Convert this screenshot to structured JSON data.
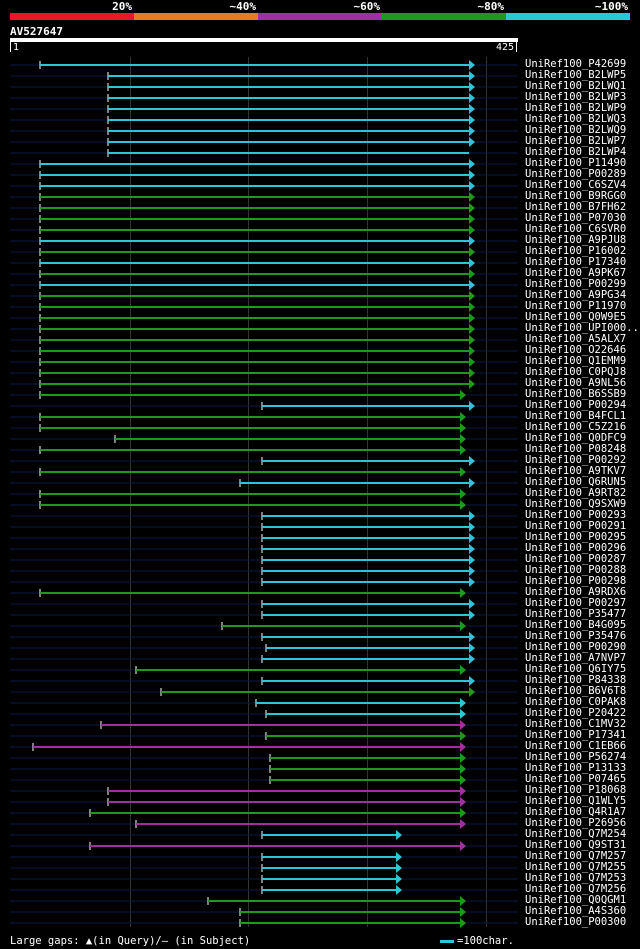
{
  "legend": {
    "segments": [
      {
        "label": "20%",
        "color": "#e8182a"
      },
      {
        "label": "~40%",
        "color": "#ea7a1e"
      },
      {
        "label": "~60%",
        "color": "#a030a0"
      },
      {
        "label": "~80%",
        "color": "#1d9a1d"
      },
      {
        "label": "~100%",
        "color": "#2cc7d6"
      }
    ]
  },
  "query": {
    "id": "AV527647",
    "start": "1",
    "end": "425"
  },
  "footer": {
    "gaps_text": "Large gaps: ▲(in Query)/– (in Subject)",
    "scale_text": "=100char."
  },
  "hits": [
    {
      "name": "UniRef100_P42699",
      "color": "cyan",
      "start": 40,
      "end": 469,
      "arrow": true
    },
    {
      "name": "UniRef100_B2LWP5",
      "color": "cyan",
      "start": 108,
      "end": 469,
      "arrow": true
    },
    {
      "name": "UniRef100_B2LWQ1",
      "color": "cyan",
      "start": 108,
      "end": 469,
      "arrow": true
    },
    {
      "name": "UniRef100_B2LWP3",
      "color": "cyan",
      "start": 108,
      "end": 469,
      "arrow": true
    },
    {
      "name": "UniRef100_B2LWP9",
      "color": "cyan",
      "start": 108,
      "end": 469,
      "arrow": true
    },
    {
      "name": "UniRef100_B2LWQ3",
      "color": "cyan",
      "start": 108,
      "end": 469,
      "arrow": true
    },
    {
      "name": "UniRef100_B2LWQ9",
      "color": "cyan",
      "start": 108,
      "end": 469,
      "arrow": true
    },
    {
      "name": "UniRef100_B2LWP7",
      "color": "cyan",
      "start": 108,
      "end": 469,
      "arrow": true
    },
    {
      "name": "UniRef100_B2LWP4",
      "color": "cyan",
      "start": 108,
      "end": 469,
      "arrow": false
    },
    {
      "name": "UniRef100_P11490",
      "color": "cyan",
      "start": 40,
      "end": 469,
      "arrow": true
    },
    {
      "name": "UniRef100_P00289",
      "color": "cyan",
      "start": 40,
      "end": 469,
      "arrow": true
    },
    {
      "name": "UniRef100_C6SZV4",
      "color": "cyan",
      "start": 40,
      "end": 469,
      "arrow": true
    },
    {
      "name": "UniRef100_B9RGG0",
      "color": "green",
      "start": 40,
      "end": 469,
      "arrow": true
    },
    {
      "name": "UniRef100_B7FH62",
      "color": "green",
      "start": 40,
      "end": 469,
      "arrow": true
    },
    {
      "name": "UniRef100_P07030",
      "color": "green",
      "start": 40,
      "end": 469,
      "arrow": true
    },
    {
      "name": "UniRef100_C6SVR0",
      "color": "green",
      "start": 40,
      "end": 469,
      "arrow": true
    },
    {
      "name": "UniRef100_A9PJU8",
      "color": "cyan",
      "start": 40,
      "end": 469,
      "arrow": true
    },
    {
      "name": "UniRef100_P16002",
      "color": "green",
      "start": 40,
      "end": 469,
      "arrow": true
    },
    {
      "name": "UniRef100_P17340",
      "color": "cyan",
      "start": 40,
      "end": 469,
      "arrow": true
    },
    {
      "name": "UniRef100_A9PK67",
      "color": "green",
      "start": 40,
      "end": 469,
      "arrow": true
    },
    {
      "name": "UniRef100_P00299",
      "color": "cyan",
      "start": 40,
      "end": 469,
      "arrow": true
    },
    {
      "name": "UniRef100_A9PG34",
      "color": "green",
      "start": 40,
      "end": 469,
      "arrow": true
    },
    {
      "name": "UniRef100_P11970",
      "color": "green",
      "start": 40,
      "end": 469,
      "arrow": true
    },
    {
      "name": "UniRef100_Q0W9E5",
      "color": "green",
      "start": 40,
      "end": 469,
      "arrow": true
    },
    {
      "name": "UniRef100_UPI000..",
      "color": "green",
      "start": 40,
      "end": 469,
      "arrow": true
    },
    {
      "name": "UniRef100_A5ALX7",
      "color": "green",
      "start": 40,
      "end": 469,
      "arrow": true
    },
    {
      "name": "UniRef100_O22646",
      "color": "green",
      "start": 40,
      "end": 469,
      "arrow": true
    },
    {
      "name": "UniRef100_Q1EMM9",
      "color": "green",
      "start": 40,
      "end": 469,
      "arrow": true
    },
    {
      "name": "UniRef100_C0PQJ8",
      "color": "green",
      "start": 40,
      "end": 469,
      "arrow": true
    },
    {
      "name": "UniRef100_A9NL56",
      "color": "green",
      "start": 40,
      "end": 469,
      "arrow": true
    },
    {
      "name": "UniRef100_B6SSB9",
      "color": "green",
      "start": 40,
      "end": 460,
      "arrow": true
    },
    {
      "name": "UniRef100_P00294",
      "color": "cyan",
      "start": 262,
      "end": 469,
      "arrow": true
    },
    {
      "name": "UniRef100_B4FCL1",
      "color": "green",
      "start": 40,
      "end": 460,
      "arrow": true
    },
    {
      "name": "UniRef100_C5Z216",
      "color": "green",
      "start": 40,
      "end": 460,
      "arrow": true
    },
    {
      "name": "UniRef100_Q0DFC9",
      "color": "green",
      "start": 115,
      "end": 460,
      "arrow": true
    },
    {
      "name": "UniRef100_P08248",
      "color": "green",
      "start": 40,
      "end": 460,
      "arrow": true
    },
    {
      "name": "UniRef100_P00292",
      "color": "cyan",
      "start": 262,
      "end": 469,
      "arrow": true
    },
    {
      "name": "UniRef100_A9TKV7",
      "color": "green",
      "start": 40,
      "end": 460,
      "arrow": true
    },
    {
      "name": "UniRef100_Q6RUN5",
      "color": "cyan",
      "start": 240,
      "end": 469,
      "arrow": true
    },
    {
      "name": "UniRef100_A9RT82",
      "color": "green",
      "start": 40,
      "end": 460,
      "arrow": true
    },
    {
      "name": "UniRef100_Q9SXW9",
      "color": "green",
      "start": 40,
      "end": 460,
      "arrow": true
    },
    {
      "name": "UniRef100_P00293",
      "color": "cyan",
      "start": 262,
      "end": 469,
      "arrow": true
    },
    {
      "name": "UniRef100_P00291",
      "color": "cyan",
      "start": 262,
      "end": 469,
      "arrow": true
    },
    {
      "name": "UniRef100_P00295",
      "color": "cyan",
      "start": 262,
      "end": 469,
      "arrow": true
    },
    {
      "name": "UniRef100_P00296",
      "color": "cyan",
      "start": 262,
      "end": 469,
      "arrow": true
    },
    {
      "name": "UniRef100_P00287",
      "color": "cyan",
      "start": 262,
      "end": 469,
      "arrow": true
    },
    {
      "name": "UniRef100_P00288",
      "color": "cyan",
      "start": 262,
      "end": 469,
      "arrow": true
    },
    {
      "name": "UniRef100_P00298",
      "color": "cyan",
      "start": 262,
      "end": 469,
      "arrow": true
    },
    {
      "name": "UniRef100_A9RDX6",
      "color": "green",
      "start": 40,
      "end": 460,
      "arrow": true
    },
    {
      "name": "UniRef100_P00297",
      "color": "cyan",
      "start": 262,
      "end": 469,
      "arrow": true
    },
    {
      "name": "UniRef100_P35477",
      "color": "cyan",
      "start": 262,
      "end": 469,
      "arrow": true
    },
    {
      "name": "UniRef100_B4G095",
      "color": "green",
      "start": 222,
      "end": 460,
      "arrow": true
    },
    {
      "name": "UniRef100_P35476",
      "color": "cyan",
      "start": 262,
      "end": 469,
      "arrow": true
    },
    {
      "name": "UniRef100_P00290",
      "color": "cyan",
      "start": 266,
      "end": 469,
      "arrow": true
    },
    {
      "name": "UniRef100_A7NVP7",
      "color": "cyan",
      "start": 262,
      "end": 469,
      "arrow": true
    },
    {
      "name": "UniRef100_Q6IY75",
      "color": "green",
      "start": 136,
      "end": 460,
      "arrow": true
    },
    {
      "name": "UniRef100_P84338",
      "color": "cyan",
      "start": 262,
      "end": 469,
      "arrow": true
    },
    {
      "name": "UniRef100_B6V6T8",
      "color": "green",
      "start": 161,
      "end": 469,
      "arrow": true
    },
    {
      "name": "UniRef100_C0PAK8",
      "color": "cyan",
      "start": 256,
      "end": 460,
      "arrow": true
    },
    {
      "name": "UniRef100_P20422",
      "color": "cyan",
      "start": 266,
      "end": 460,
      "arrow": true
    },
    {
      "name": "UniRef100_C1MV32",
      "color": "purple",
      "start": 101,
      "end": 460,
      "arrow": true
    },
    {
      "name": "UniRef100_P17341",
      "color": "green",
      "start": 266,
      "end": 460,
      "arrow": true
    },
    {
      "name": "UniRef100_C1EB66",
      "color": "purple",
      "start": 33,
      "end": 460,
      "arrow": true
    },
    {
      "name": "UniRef100_P56274",
      "color": "green",
      "start": 270,
      "end": 460,
      "arrow": true
    },
    {
      "name": "UniRef100_P13133",
      "color": "green",
      "start": 270,
      "end": 460,
      "arrow": true
    },
    {
      "name": "UniRef100_P07465",
      "color": "green",
      "start": 270,
      "end": 460,
      "arrow": true
    },
    {
      "name": "UniRef100_P18068",
      "color": "purple",
      "start": 108,
      "end": 460,
      "arrow": true
    },
    {
      "name": "UniRef100_Q1WLY5",
      "color": "purple",
      "start": 108,
      "end": 460,
      "arrow": true
    },
    {
      "name": "UniRef100_Q4R1A7",
      "color": "green",
      "start": 90,
      "end": 460,
      "arrow": true
    },
    {
      "name": "UniRef100_P26956",
      "color": "purple",
      "start": 136,
      "end": 460,
      "arrow": true
    },
    {
      "name": "UniRef100_Q7M254",
      "color": "cyan",
      "start": 262,
      "end": 396,
      "arrow": true
    },
    {
      "name": "UniRef100_Q9ST31",
      "color": "purple",
      "start": 90,
      "end": 460,
      "arrow": true
    },
    {
      "name": "UniRef100_Q7M257",
      "color": "cyan",
      "start": 262,
      "end": 396,
      "arrow": true
    },
    {
      "name": "UniRef100_Q7M255",
      "color": "cyan",
      "start": 262,
      "end": 396,
      "arrow": true
    },
    {
      "name": "UniRef100_Q7M253",
      "color": "cyan",
      "start": 262,
      "end": 396,
      "arrow": true
    },
    {
      "name": "UniRef100_Q7M256",
      "color": "cyan",
      "start": 262,
      "end": 396,
      "arrow": true
    },
    {
      "name": "UniRef100_Q0QGM1",
      "color": "green",
      "start": 208,
      "end": 460,
      "arrow": true
    },
    {
      "name": "UniRef100_A4S360",
      "color": "green",
      "start": 240,
      "end": 460,
      "arrow": true
    },
    {
      "name": "UniRef100_P00300",
      "color": "green",
      "start": 240,
      "end": 460,
      "arrow": true
    }
  ]
}
